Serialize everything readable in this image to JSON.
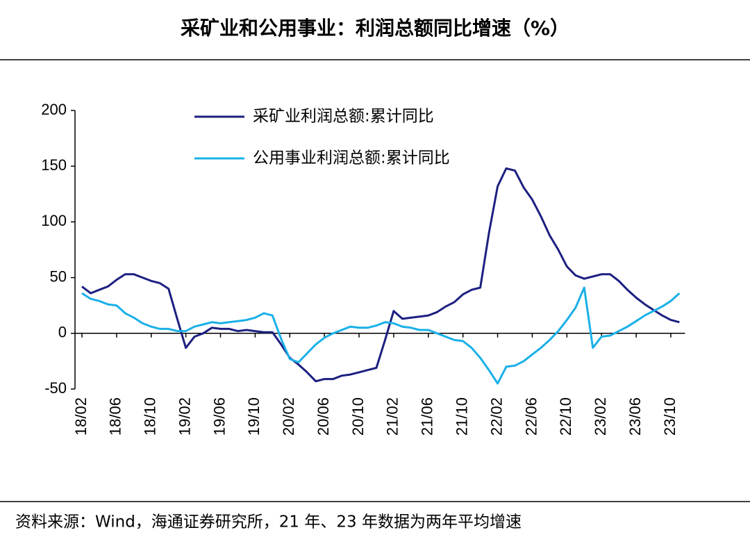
{
  "chart_data": {
    "type": "line",
    "title": "采矿业和公用事业：利润总额同比增速（%）",
    "source": "资料来源：Wind，海通证券研究所，21 年、23 年数据为两年平均增速",
    "categories": [
      "18/02",
      null,
      null,
      null,
      "18/06",
      null,
      null,
      null,
      "18/10",
      null,
      null,
      null,
      "19/02",
      null,
      null,
      null,
      "19/06",
      null,
      null,
      null,
      "19/10",
      null,
      null,
      null,
      "20/02",
      null,
      null,
      null,
      "20/06",
      null,
      null,
      null,
      "20/10",
      null,
      null,
      null,
      "21/02",
      null,
      null,
      null,
      "21/06",
      null,
      null,
      null,
      "21/10",
      null,
      null,
      null,
      "22/02",
      null,
      null,
      null,
      "22/06",
      null,
      null,
      null,
      "22/10",
      null,
      null,
      null,
      "23/02",
      null,
      null,
      null,
      "23/06",
      null,
      null,
      null,
      "23/10",
      null
    ],
    "series": [
      {
        "name": "采矿业利润总额:累计同比",
        "color": "#1c1f80",
        "values": [
          42,
          36,
          39,
          42,
          48,
          53,
          53,
          50,
          47,
          45,
          40,
          13,
          -13,
          -3,
          0,
          5,
          4,
          4,
          2,
          3,
          2,
          1,
          1,
          -10,
          -22,
          -28,
          -35,
          -43,
          -41,
          -41,
          -38,
          -37,
          -35,
          -33,
          -31,
          -6,
          20,
          13,
          14,
          15,
          16,
          19,
          24,
          28,
          35,
          39,
          41,
          90,
          132,
          148,
          146,
          131,
          120,
          105,
          88,
          75,
          60,
          52,
          49,
          51,
          53,
          53,
          47,
          39,
          32,
          26,
          21,
          16,
          12,
          10
        ]
      },
      {
        "name": "公用事业利润总额:累计同比",
        "color": "#1ab0e8",
        "values": [
          36,
          31,
          29,
          26,
          25,
          18,
          14,
          9,
          6,
          4,
          4,
          2,
          2,
          6,
          8,
          10,
          9,
          10,
          11,
          12,
          14,
          18,
          16,
          -5,
          -23,
          -26,
          -18,
          -10,
          -4,
          0,
          3,
          6,
          5,
          5,
          7,
          10,
          9,
          6,
          5,
          3,
          3,
          0,
          -3,
          -6,
          -7,
          -13,
          -22,
          -33,
          -45,
          -30,
          -29,
          -25,
          -19,
          -13,
          -6,
          2,
          12,
          23,
          41,
          -13,
          -3,
          -2,
          2,
          6,
          11,
          16,
          20,
          24,
          29,
          36
        ]
      }
    ],
    "ylim": [
      -50,
      200
    ],
    "yticks": [
      -50,
      0,
      50,
      100,
      150,
      200
    ]
  }
}
